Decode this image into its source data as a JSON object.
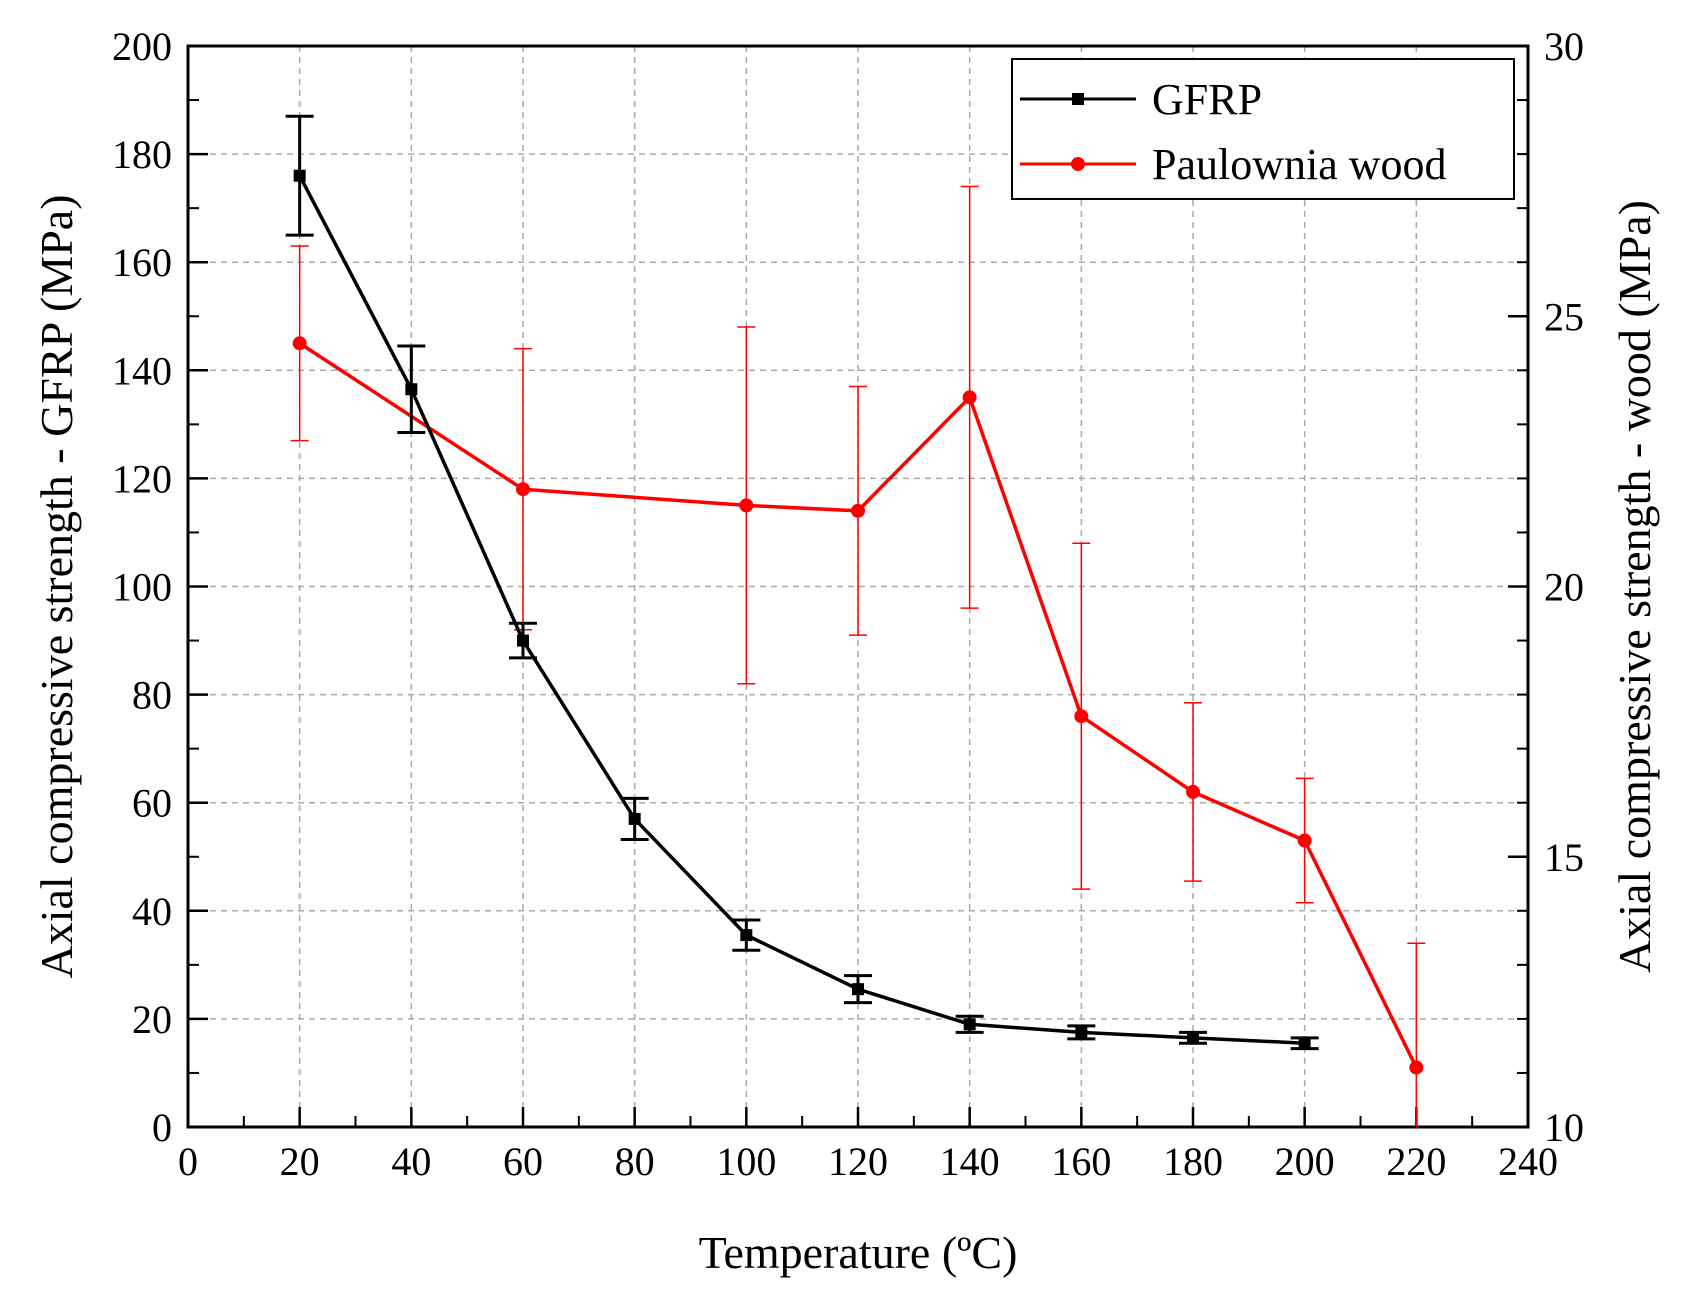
{
  "chart_data": {
    "type": "line",
    "title": "",
    "xlabel": "Temperature (ºC)",
    "ylabel_left": "Axial compressive strength - GFRP (MPa)",
    "ylabel_right": "Axial compressive strength - wood (MPa)",
    "xlim": [
      0,
      240
    ],
    "ylim_left": [
      0,
      200
    ],
    "ylim_right": [
      10,
      30
    ],
    "x_ticks": [
      "0",
      "20",
      "40",
      "60",
      "80",
      "100",
      "120",
      "140",
      "160",
      "180",
      "200",
      "220",
      "240"
    ],
    "y_left_ticks": [
      "0",
      "20",
      "40",
      "60",
      "80",
      "100",
      "120",
      "140",
      "160",
      "180",
      "200"
    ],
    "y_right_ticks": [
      "10",
      "15",
      "20",
      "25",
      "30"
    ],
    "grid": true,
    "legend_position": "top-right",
    "series": [
      {
        "name": "GFRP",
        "axis": "left",
        "color": "#000000",
        "marker": "square",
        "x": [
          20,
          40,
          60,
          80,
          100,
          120,
          140,
          160,
          180,
          200
        ],
        "values": [
          176,
          136.5,
          90,
          57,
          35.5,
          25.5,
          19,
          17.5,
          16.5,
          15.5
        ],
        "error": [
          11,
          8,
          3.2,
          3.8,
          2.8,
          2.5,
          1.5,
          1.2,
          1.0,
          1.0
        ]
      },
      {
        "name": "Paulownia wood",
        "axis": "right",
        "color": "#ff0000",
        "marker": "circle",
        "x": [
          20,
          40,
          60,
          80,
          100,
          120,
          140,
          160,
          180,
          200,
          220
        ],
        "values": [
          24.5,
          null,
          21.8,
          null,
          21.5,
          21.4,
          23.5,
          17.6,
          16.2,
          15.3,
          11.1
        ],
        "error": [
          1.8,
          null,
          2.6,
          null,
          3.3,
          2.3,
          3.9,
          3.2,
          1.65,
          1.15,
          2.3
        ]
      }
    ]
  }
}
